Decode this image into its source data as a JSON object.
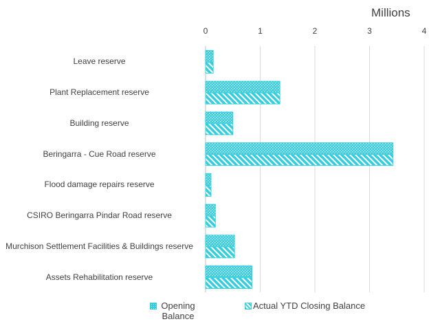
{
  "chart_data": {
    "type": "hbar",
    "xlabel": "Millions",
    "categories": [
      "Leave reserve",
      "Plant Replacement reserve",
      "Building reserve",
      "Beringarra - Cue Road reserve",
      "Flood damage repairs reserve",
      "CSIRO Beringarra Pindar Road reserve",
      "Murchison Settlement Facilities & Buildings reserve",
      "Assets Rehabilitation reserve"
    ],
    "series": [
      {
        "name": "Opening Balance",
        "color": "#33cfe0",
        "pattern": "dots",
        "values": [
          0.14,
          1.36,
          0.5,
          3.43,
          0.1,
          0.18,
          0.53,
          0.85
        ]
      },
      {
        "name": "Actual YTD Closing Balance",
        "color": "#33cfe0",
        "pattern": "stripes",
        "values": [
          0.14,
          1.36,
          0.5,
          3.43,
          0.1,
          0.18,
          0.53,
          0.85
        ]
      }
    ],
    "xlim": [
      0,
      4
    ],
    "xticks": [
      0,
      1,
      2,
      3,
      4
    ],
    "grid": true,
    "legend": "bottom"
  }
}
